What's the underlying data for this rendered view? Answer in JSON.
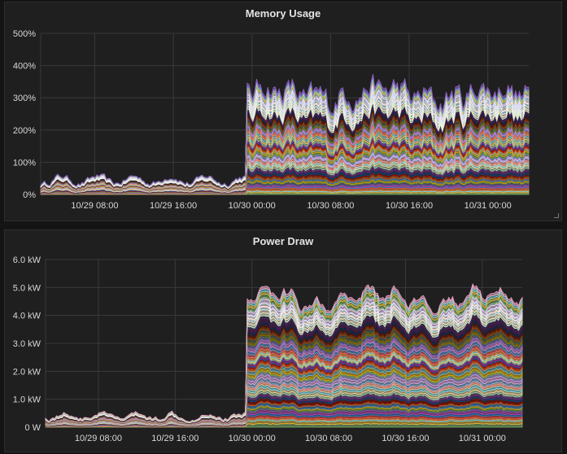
{
  "chart_data": [
    {
      "type": "area",
      "stacked": true,
      "title": "Memory Usage",
      "xlabel": "",
      "ylabel": "",
      "x_ticks": [
        "10/29 08:00",
        "10/29 16:00",
        "10/30 00:00",
        "10/30 08:00",
        "10/30 16:00",
        "10/31 00:00"
      ],
      "x_range": [
        "10/29 02:30",
        "10/31 04:10"
      ],
      "y_ticks": [
        "0%",
        "100%",
        "200%",
        "300%",
        "400%",
        "500%"
      ],
      "ylim": [
        0,
        500
      ],
      "unit": "%",
      "grid": true,
      "legend": "none",
      "series_count": 60,
      "segments": [
        {
          "from": "10/29 02:30",
          "to": "10/29 23:00",
          "total_approx": 45
        },
        {
          "from": "10/29 23:00",
          "to": "10/30 00:00",
          "total_approx": 370
        },
        {
          "from": "10/30 00:00",
          "to": "10/31 04:10",
          "total_approx": 340,
          "peak": 410
        }
      ]
    },
    {
      "type": "area",
      "stacked": true,
      "title": "Power Draw",
      "xlabel": "",
      "ylabel": "",
      "x_ticks": [
        "10/29 08:00",
        "10/29 16:00",
        "10/30 00:00",
        "10/30 08:00",
        "10/30 16:00",
        "10/31 00:00"
      ],
      "x_range": [
        "10/29 02:30",
        "10/31 04:10"
      ],
      "y_ticks": [
        "0 W",
        "1.0 kW",
        "2.0 kW",
        "3.0 kW",
        "4.0 kW",
        "5.0 kW",
        "6.0 kW"
      ],
      "ylim": [
        0,
        6.0
      ],
      "unit": "kW",
      "grid": true,
      "legend": "none",
      "series_count": 60,
      "segments": [
        {
          "from": "10/29 02:30",
          "to": "10/29 23:00",
          "total_approx": 0.4
        },
        {
          "from": "10/29 23:00",
          "to": "10/30 00:00",
          "total_approx": 5.1
        },
        {
          "from": "10/30 00:00",
          "to": "10/31 04:10",
          "total_approx": 5.0,
          "peak": 5.25
        }
      ]
    }
  ],
  "colors": {
    "palette": [
      "#7eb26d",
      "#eab839",
      "#6ed0e0",
      "#ef843c",
      "#e24d42",
      "#1f78c1",
      "#ba43a9",
      "#705da0",
      "#508642",
      "#cca300",
      "#447ebc",
      "#c15c17",
      "#890f02",
      "#0a437c",
      "#6d1f62",
      "#584477",
      "#b7dbab",
      "#f4d598",
      "#70dbed",
      "#f9ba8f",
      "#f29191",
      "#82b5d8",
      "#e5a8e2",
      "#aea2e0",
      "#629e51",
      "#e5ac0e",
      "#64b0c8",
      "#e0752d",
      "#bf1b00",
      "#0a50a1",
      "#962d82",
      "#614d93",
      "#9ac48a",
      "#f2c96d",
      "#65c5db",
      "#f9934e",
      "#ea6460",
      "#5195ce",
      "#d683ce",
      "#806eb7",
      "#3f6833",
      "#967302",
      "#2f575e",
      "#99440a",
      "#58140c",
      "#052b51",
      "#511749",
      "#3f2b5b",
      "#e0f9d7",
      "#fceaca",
      "#cffaff",
      "#f9e2d2",
      "#fce2de",
      "#badff4",
      "#f9d9f9",
      "#dedaf7"
    ],
    "top_memory": "#8f61c2",
    "top_power": "#f2a7c7"
  }
}
